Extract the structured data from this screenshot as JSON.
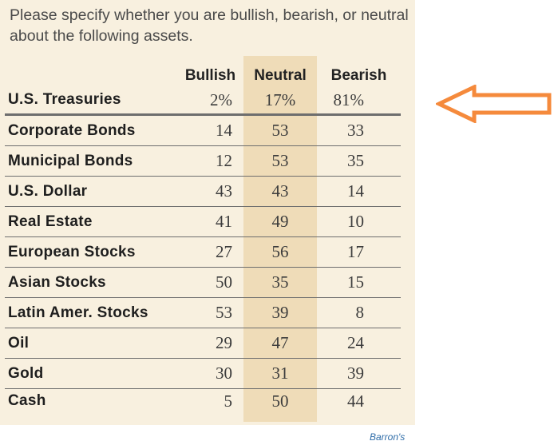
{
  "prompt": "Please specify whether you are bullish, bearish, or neutral about the following assets.",
  "source": "Barron's",
  "accent_color": "#f58a3c",
  "neutral_column_color": "#efdcb8",
  "chart_data": {
    "type": "table",
    "columns": [
      "Bullish",
      "Neutral",
      "Bearish"
    ],
    "rows": [
      {
        "label": "U.S. Treasuries",
        "values": [
          "2%",
          "17%",
          "81%"
        ]
      },
      {
        "label": "Corporate Bonds",
        "values": [
          "14",
          "53",
          "33"
        ]
      },
      {
        "label": "Municipal Bonds",
        "values": [
          "12",
          "53",
          "35"
        ]
      },
      {
        "label": "U.S. Dollar",
        "values": [
          "43",
          "43",
          "14"
        ]
      },
      {
        "label": "Real Estate",
        "values": [
          "41",
          "49",
          "10"
        ]
      },
      {
        "label": "European Stocks",
        "values": [
          "27",
          "56",
          "17"
        ]
      },
      {
        "label": "Asian Stocks",
        "values": [
          "50",
          "35",
          "15"
        ]
      },
      {
        "label": "Latin Amer. Stocks",
        "values": [
          "53",
          "39",
          "8"
        ]
      },
      {
        "label": "Oil",
        "values": [
          "29",
          "47",
          "24"
        ]
      },
      {
        "label": "Gold",
        "values": [
          "30",
          "31",
          "39"
        ]
      },
      {
        "label": "Cash",
        "values": [
          "5",
          "50",
          "44"
        ]
      }
    ],
    "highlighted_row": "U.S. Treasuries",
    "highlighted_column": "Neutral"
  }
}
